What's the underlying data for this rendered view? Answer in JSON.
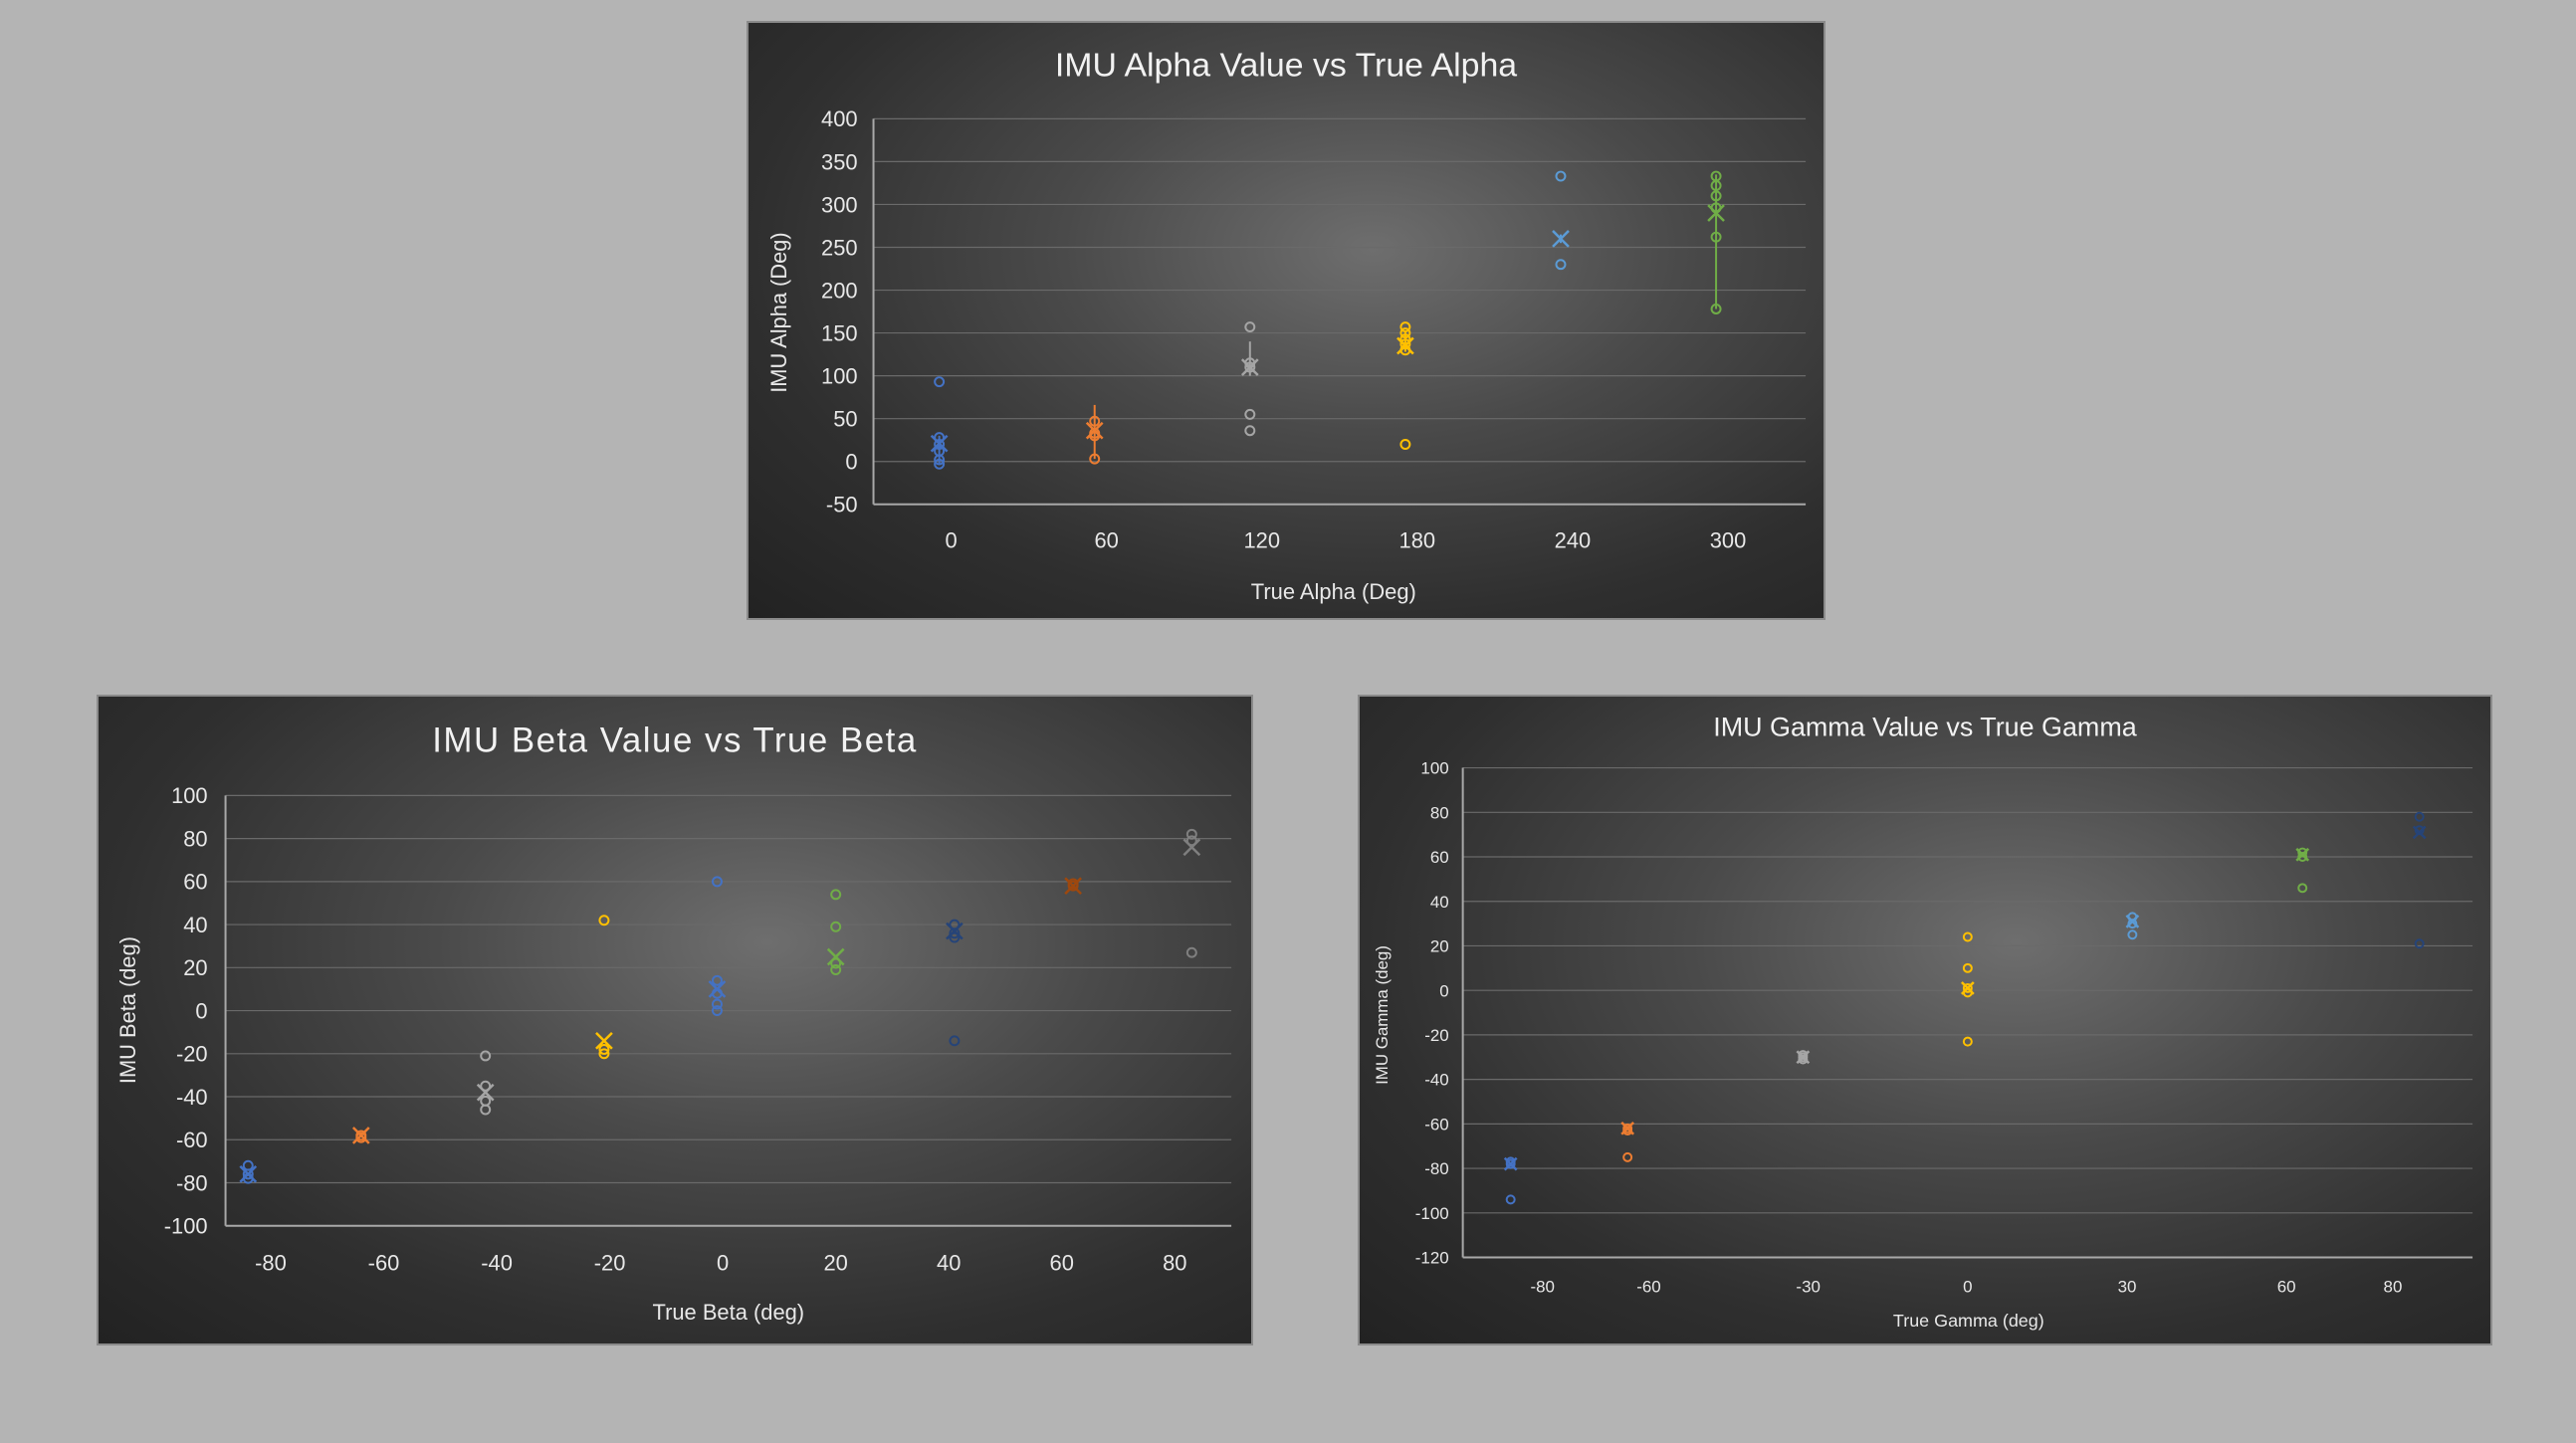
{
  "chart_data": [
    {
      "id": "alpha",
      "type": "box-scatter",
      "title": "IMU Alpha Value vs True Alpha",
      "xlabel": "True Alpha (Deg)",
      "ylabel": "IMU Alpha (Deg)",
      "categories": [
        "0",
        "60",
        "120",
        "180",
        "240",
        "300"
      ],
      "ylim": [
        -50,
        400
      ],
      "yticks": [
        -50,
        0,
        50,
        100,
        150,
        200,
        250,
        300,
        350,
        400
      ],
      "grid": true,
      "series": [
        {
          "category": "0",
          "color": "#4472c4",
          "points": [
            93,
            28,
            20,
            12,
            2,
            -3
          ],
          "mean": 21,
          "whisker": [
            -3,
            30
          ]
        },
        {
          "category": "60",
          "color": "#ed7d31",
          "points": [
            47,
            33,
            30,
            3
          ],
          "mean": 36,
          "whisker": [
            3,
            66
          ]
        },
        {
          "category": "120",
          "color": "#a5a5a5",
          "points": [
            157,
            115,
            110,
            55,
            36
          ],
          "mean": 110,
          "whisker": [
            100,
            140
          ]
        },
        {
          "category": "180",
          "color": "#ffc000",
          "points": [
            157,
            150,
            143,
            137,
            130,
            20
          ],
          "mean": 135,
          "whisker": [
            128,
            152
          ]
        },
        {
          "category": "240",
          "color": "#5b9bd5",
          "points": [
            333,
            230
          ],
          "mean": 260,
          "whisker": [
            255,
            265
          ]
        },
        {
          "category": "300",
          "color": "#70ad47",
          "points": [
            333,
            322,
            310,
            296,
            262,
            178
          ],
          "mean": 290,
          "whisker": [
            178,
            335
          ]
        }
      ]
    },
    {
      "id": "beta",
      "type": "box-scatter",
      "title": "IMU Beta Value vs True Beta",
      "xlabel": "True Beta (deg)",
      "ylabel": "IMU Beta (deg)",
      "xlim": [
        -88,
        90
      ],
      "xticks": [
        -80,
        -60,
        -40,
        -20,
        0,
        20,
        40,
        60,
        80
      ],
      "ylim": [
        -100,
        100
      ],
      "yticks": [
        -100,
        -80,
        -60,
        -40,
        -20,
        0,
        20,
        40,
        60,
        80,
        100
      ],
      "grid": true,
      "series": [
        {
          "x": -84,
          "color": "#4472c4",
          "points": [
            -72,
            -76,
            -78
          ],
          "mean": -76
        },
        {
          "x": -64,
          "color": "#ed7d31",
          "points": [
            -58,
            -59
          ],
          "mean": -58
        },
        {
          "x": -42,
          "color": "#a5a5a5",
          "points": [
            -21,
            -35,
            -42,
            -46
          ],
          "mean": -38
        },
        {
          "x": -21,
          "color": "#ffc000",
          "points": [
            42,
            -18,
            -20
          ],
          "mean": -14
        },
        {
          "x": -1,
          "color": "#4472c4",
          "points": [
            60,
            14,
            8,
            3,
            0
          ],
          "mean": 10
        },
        {
          "x": 20,
          "color": "#70ad47",
          "points": [
            54,
            39,
            22,
            19
          ],
          "mean": 25
        },
        {
          "x": 41,
          "color": "#264478",
          "points": [
            40,
            36,
            34,
            -14
          ],
          "mean": 37
        },
        {
          "x": 62,
          "color": "#9e480e",
          "points": [
            59,
            58
          ],
          "mean": 58
        },
        {
          "x": 83,
          "color": "#7f7f7f",
          "points": [
            82,
            79,
            27
          ],
          "mean": 76
        }
      ]
    },
    {
      "id": "gamma",
      "type": "box-scatter",
      "title": "IMU Gamma Value vs True Gamma",
      "xlabel": "True Gamma (deg)",
      "ylabel": "IMU Gamma (deg)",
      "xlim": [
        -95,
        95
      ],
      "xticks": [
        -80,
        -60,
        -30,
        0,
        30,
        60,
        80
      ],
      "ylim": [
        -120,
        100
      ],
      "yticks": [
        -120,
        -100,
        -80,
        -60,
        -40,
        -20,
        0,
        20,
        40,
        60,
        80,
        100
      ],
      "grid": true,
      "series": [
        {
          "x": -86,
          "color": "#4472c4",
          "points": [
            -77,
            -78,
            -94
          ],
          "mean": -78
        },
        {
          "x": -64,
          "color": "#ed7d31",
          "points": [
            -62,
            -63,
            -75
          ],
          "mean": -62
        },
        {
          "x": -31,
          "color": "#a5a5a5",
          "points": [
            -29,
            -30,
            -31
          ],
          "mean": -30
        },
        {
          "x": 0,
          "color": "#ffc000",
          "points": [
            24,
            10,
            1,
            -1,
            -23
          ],
          "mean": 1
        },
        {
          "x": 31,
          "color": "#5b9bd5",
          "points": [
            33,
            30,
            25
          ],
          "mean": 31
        },
        {
          "x": 63,
          "color": "#70ad47",
          "points": [
            62,
            60,
            46
          ],
          "mean": 61
        },
        {
          "x": 85,
          "color": "#264478",
          "points": [
            78,
            72,
            21
          ],
          "mean": 71
        }
      ]
    }
  ]
}
